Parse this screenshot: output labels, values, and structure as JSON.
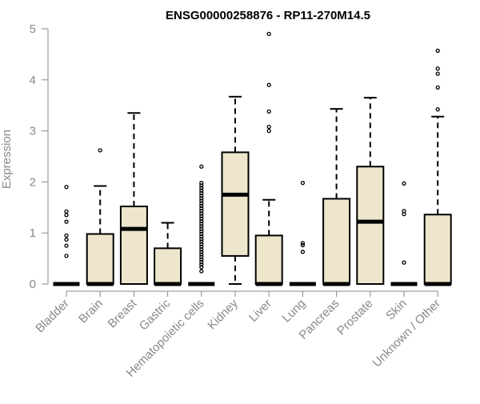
{
  "chart_data": {
    "type": "boxplot",
    "title": "ENSG00000258876 - RP11-270M14.5",
    "xlabel": "",
    "ylabel": "Expression",
    "ylim": [
      0,
      5
    ],
    "yticks": [
      0,
      1,
      2,
      3,
      4,
      5
    ],
    "grid": false,
    "legend": "none",
    "colors": {
      "box_fill": "#ede6cc",
      "stroke": "#000000",
      "axis": "#888888",
      "label": "#888888",
      "title": "#000000"
    },
    "categories": [
      "Bladder",
      "Brain",
      "Breast",
      "Gastric",
      "Hematopoietic cells",
      "Kidney",
      "Liver",
      "Lung",
      "Pancreas",
      "Prostate",
      "Skin",
      "Unknown / Other"
    ],
    "boxes": [
      {
        "category": "Bladder",
        "whisker_low": 0,
        "q1": 0,
        "median": 0,
        "q3": 0,
        "whisker_high": 0,
        "outliers": [
          1.9,
          1.42,
          1.35,
          1.22,
          0.95,
          0.87,
          0.75,
          0.55
        ]
      },
      {
        "category": "Brain",
        "whisker_low": 0,
        "q1": 0,
        "median": 0,
        "q3": 0.98,
        "whisker_high": 1.92,
        "outliers": [
          2.62
        ]
      },
      {
        "category": "Breast",
        "whisker_low": 0,
        "q1": 0,
        "median": 1.08,
        "q3": 1.52,
        "whisker_high": 3.35,
        "outliers": []
      },
      {
        "category": "Gastric",
        "whisker_low": 0,
        "q1": 0,
        "median": 0,
        "q3": 0.7,
        "whisker_high": 1.2,
        "outliers": []
      },
      {
        "category": "Hematopoietic cells",
        "whisker_low": 0,
        "q1": 0,
        "median": 0,
        "q3": 0,
        "whisker_high": 0,
        "outliers": [
          2.3,
          1.98,
          1.93,
          1.88,
          1.83,
          1.78,
          1.73,
          1.68,
          1.63,
          1.58,
          1.53,
          1.48,
          1.43,
          1.38,
          1.33,
          1.28,
          1.23,
          1.18,
          1.13,
          1.08,
          1.03,
          0.98,
          0.93,
          0.88,
          0.83,
          0.78,
          0.73,
          0.68,
          0.63,
          0.58,
          0.53,
          0.48,
          0.43,
          0.38,
          0.33,
          0.25
        ]
      },
      {
        "category": "Kidney",
        "whisker_low": 0,
        "q1": 0.55,
        "median": 1.75,
        "q3": 2.58,
        "whisker_high": 3.67,
        "outliers": []
      },
      {
        "category": "Liver",
        "whisker_low": 0,
        "q1": 0,
        "median": 0,
        "q3": 0.95,
        "whisker_high": 1.65,
        "outliers": [
          4.9,
          3.9,
          3.38,
          3.08,
          3.0
        ]
      },
      {
        "category": "Lung",
        "whisker_low": 0,
        "q1": 0,
        "median": 0,
        "q3": 0,
        "whisker_high": 0,
        "outliers": [
          1.98,
          0.8,
          0.76,
          0.63
        ]
      },
      {
        "category": "Pancreas",
        "whisker_low": 0,
        "q1": 0,
        "median": 0,
        "q3": 1.67,
        "whisker_high": 3.43,
        "outliers": []
      },
      {
        "category": "Prostate",
        "whisker_low": 0,
        "q1": 0,
        "median": 1.22,
        "q3": 2.3,
        "whisker_high": 3.65,
        "outliers": []
      },
      {
        "category": "Skin",
        "whisker_low": 0,
        "q1": 0,
        "median": 0,
        "q3": 0,
        "whisker_high": 0,
        "outliers": [
          1.97,
          1.43,
          1.37,
          0.42
        ]
      },
      {
        "category": "Unknown / Other",
        "whisker_low": 0,
        "q1": 0,
        "median": 0,
        "q3": 1.36,
        "whisker_high": 3.28,
        "outliers": [
          4.57,
          4.22,
          4.12,
          3.85,
          3.42
        ]
      }
    ]
  }
}
